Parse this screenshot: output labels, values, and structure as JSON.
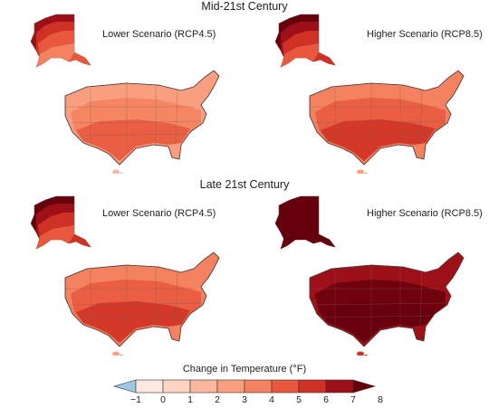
{
  "rows": [
    {
      "title": "Mid-21st Century",
      "panels": [
        {
          "label": "Lower Scenario (RCP4.5)",
          "alaska_levels": [
            7,
            6,
            5,
            4
          ],
          "conus_levels": [
            3,
            4,
            5
          ],
          "hawaii_level": 2
        },
        {
          "label": "Higher Scenario (RCP8.5)",
          "alaska_levels": [
            8,
            7,
            6,
            5
          ],
          "conus_levels": [
            4,
            5,
            6
          ],
          "hawaii_level": 3
        }
      ]
    },
    {
      "title": "Late 21st Century",
      "panels": [
        {
          "label": "Lower Scenario (RCP4.5)",
          "alaska_levels": [
            8,
            7,
            6,
            5
          ],
          "conus_levels": [
            4,
            5,
            6
          ],
          "hawaii_level": 3
        },
        {
          "label": "Higher Scenario (RCP8.5)",
          "alaska_levels": [
            8,
            8,
            8,
            8
          ],
          "conus_levels": [
            7,
            8,
            8
          ],
          "hawaii_level": 6
        }
      ]
    }
  ],
  "legend": {
    "title": "Change in Temperature (°F)",
    "ticks": [
      "−1",
      "0",
      "1",
      "2",
      "3",
      "4",
      "5",
      "6",
      "7",
      "8"
    ],
    "bin_colors": [
      "#9ec9e2",
      "#fde9df",
      "#fcd4c1",
      "#fbb79c",
      "#f99e7e",
      "#f4815f",
      "#e8583e",
      "#cf3125",
      "#9e1018",
      "#67000d"
    ]
  }
}
